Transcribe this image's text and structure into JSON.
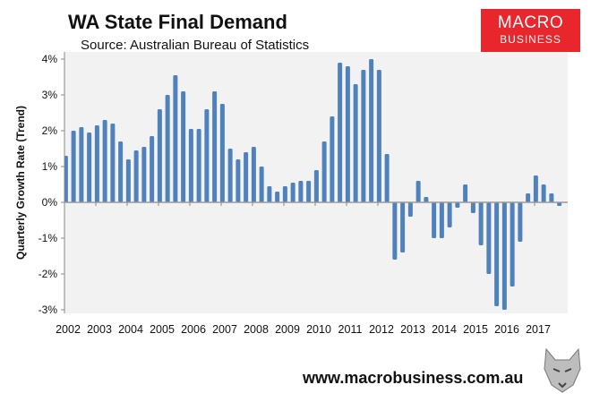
{
  "header": {
    "title": "WA State Final Demand",
    "subtitle": "Source: Australian Bureau of Statistics"
  },
  "logo": {
    "line1": "MACRO",
    "line2": "BUSINESS",
    "color": "#e8262b"
  },
  "footer": {
    "website": "www.macrobusiness.com.au"
  },
  "chart_data": {
    "type": "bar",
    "title": "WA State Final Demand",
    "ylabel": "Quarterly Growth Rate (Trend)",
    "xlabel": "",
    "ylim": [
      -3,
      4
    ],
    "y_ticks": [
      "4%",
      "3%",
      "2%",
      "1%",
      "0%",
      "-1%",
      "-2%",
      "-3%"
    ],
    "y_tick_values": [
      4,
      3,
      2,
      1,
      0,
      -1,
      -2,
      -3
    ],
    "x_tick_labels": [
      "2002",
      "2003",
      "2004",
      "2005",
      "2006",
      "2007",
      "2008",
      "2009",
      "2010",
      "2011",
      "2012",
      "2013",
      "2014",
      "2015",
      "2016",
      "2017"
    ],
    "x_start_year": 2002,
    "periods_per_year": 4,
    "bar_color": "#4f81bd",
    "plot_background": "#f2f2f2",
    "grid": false,
    "values": [
      1.3,
      2.0,
      2.1,
      1.95,
      2.15,
      2.3,
      2.2,
      1.7,
      1.2,
      1.45,
      1.55,
      1.85,
      2.6,
      3.0,
      3.55,
      3.1,
      2.05,
      2.05,
      2.6,
      3.1,
      2.75,
      1.5,
      1.2,
      1.4,
      1.55,
      1.0,
      0.45,
      0.3,
      0.45,
      0.55,
      0.6,
      0.6,
      0.9,
      1.7,
      2.4,
      3.9,
      3.8,
      3.3,
      3.7,
      4.0,
      3.7,
      1.35,
      -1.6,
      -1.4,
      -0.4,
      0.6,
      0.15,
      -1.0,
      -1.0,
      -0.7,
      -0.15,
      0.5,
      -0.3,
      -1.2,
      -2.0,
      -2.9,
      -3.0,
      -2.35,
      -1.1,
      0.25,
      0.75,
      0.5,
      0.25,
      -0.1
    ]
  }
}
